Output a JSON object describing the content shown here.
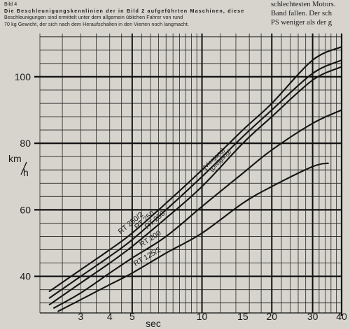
{
  "caption": {
    "label": "Bild 4",
    "spaced": "Die Beschleunigungskennlinien der in Bild 2 aufgeführten Maschinen, diese",
    "line2": "Beschleunigungen sind ermittelt unter dem allgemein üblichen Fahrer von rund",
    "line3": "70 kg Gewicht, der sich nach dem Heraufschalten in den Vierten noch langmacht."
  },
  "side_text": [
    "schlechtesten Motors.",
    "Band fallen. Der sch",
    "PS weniger als der g"
  ],
  "chart_data": {
    "type": "line",
    "title": "",
    "xlabel": "sec",
    "ylabel": "km/h",
    "ylabel_parts": [
      "km",
      "h"
    ],
    "x_scale": "log",
    "xlim": [
      2,
      40
    ],
    "ylim": [
      29,
      113
    ],
    "x_ticks": [
      3,
      4,
      5,
      10,
      15,
      20,
      30,
      40
    ],
    "y_ticks": [
      40,
      60,
      80,
      100
    ],
    "grid": true,
    "series": [
      {
        "name": "RT 250/2",
        "x": [
          2.2,
          3,
          4,
          5,
          7,
          10,
          15,
          20,
          30,
          40
        ],
        "y": [
          35.5,
          42,
          48,
          53,
          62,
          72,
          84,
          92,
          105,
          109
        ]
      },
      {
        "name": "RT 250",
        "sublabel": "(Viergang)",
        "x": [
          2.2,
          3,
          4,
          5,
          7,
          10,
          15,
          20,
          30,
          40
        ],
        "y": [
          33.5,
          40,
          46,
          51,
          60,
          70,
          82,
          90,
          101,
          105
        ]
      },
      {
        "name": "RT 250",
        "sublabel": "(Dreigang)",
        "x": [
          2.2,
          3,
          4,
          5,
          7,
          10,
          15,
          20,
          30,
          40
        ],
        "y": [
          31.5,
          38,
          44,
          49,
          57.5,
          67,
          80,
          88,
          99,
          103
        ]
      },
      {
        "name": "RT 200",
        "x": [
          2.3,
          3,
          4,
          5,
          7,
          10,
          15,
          20,
          30,
          40
        ],
        "y": [
          30.5,
          35,
          41,
          45.5,
          52,
          61,
          71,
          78,
          86,
          90
        ]
      },
      {
        "name": "RT 125/2",
        "x": [
          2.4,
          3,
          4,
          5,
          7,
          10,
          15,
          20,
          30,
          35
        ],
        "y": [
          29.5,
          33,
          37.5,
          41,
          47,
          53,
          62,
          67,
          73,
          74
        ]
      }
    ]
  }
}
